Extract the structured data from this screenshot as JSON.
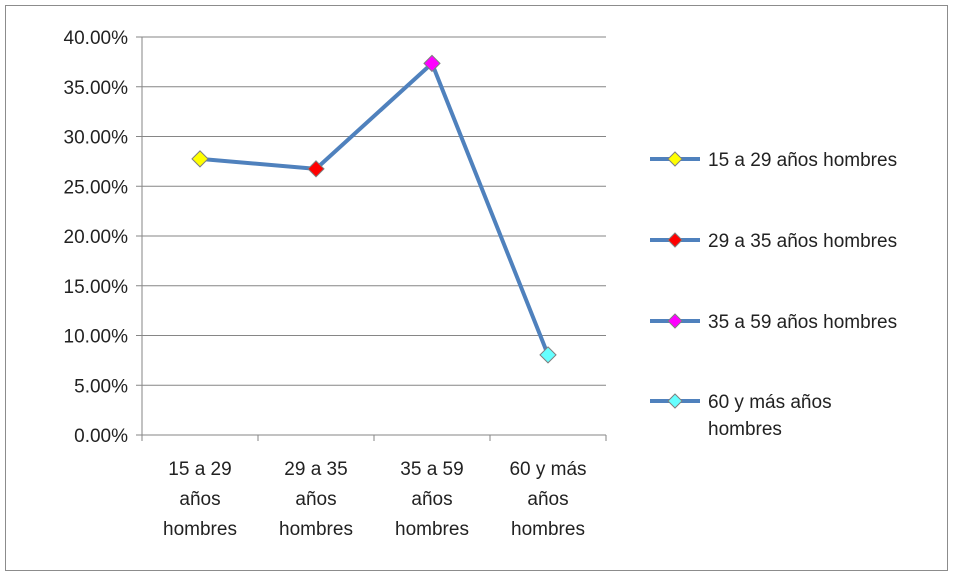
{
  "chart_data": {
    "type": "line",
    "title": "",
    "xlabel": "",
    "ylabel": "",
    "categories": [
      [
        "15 a 29",
        "años",
        "hombres"
      ],
      [
        "29 a 35",
        "años",
        "hombres"
      ],
      [
        "35 a 59",
        "años",
        "hombres"
      ],
      [
        "60 y más",
        "años",
        "hombres"
      ]
    ],
    "values": [
      0.2775,
      0.2675,
      0.3735,
      0.0805
    ],
    "ylim": [
      0,
      0.4
    ],
    "ytick_step": 0.05,
    "ytick_labels": [
      "0.00%",
      "5.00%",
      "10.00%",
      "15.00%",
      "20.00%",
      "25.00%",
      "30.00%",
      "35.00%",
      "40.00%"
    ],
    "grid": true,
    "line_color": "#4f81bd",
    "marker": "diamond",
    "marker_colors": [
      "#ffff00",
      "#ff0000",
      "#ff00ff",
      "#66ffff"
    ],
    "legend_position": "right",
    "legend": [
      {
        "lines": [
          "15 a 29 años hombres"
        ],
        "color": "#ffff00"
      },
      {
        "lines": [
          "29 a 35 años hombres"
        ],
        "color": "#ff0000"
      },
      {
        "lines": [
          "35 a 59 años hombres"
        ],
        "color": "#ff00ff"
      },
      {
        "lines": [
          "60 y más años",
          "hombres"
        ],
        "color": "#66ffff"
      }
    ]
  }
}
